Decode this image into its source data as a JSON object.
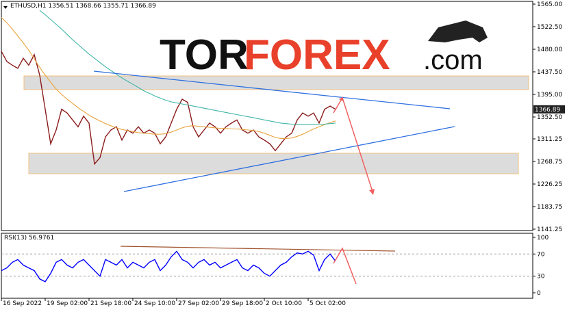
{
  "chart_data": [
    {
      "type": "line",
      "title": "ETHUSD,H1  1356.51 1368.66 1355.71 1366.89",
      "logo": {
        "part1": "TOR",
        "part2": "FOREX",
        "part3": ".com"
      },
      "last_price": {
        "value": 1366.89,
        "label": "1366.89"
      },
      "x": [
        0,
        1,
        2,
        3,
        4,
        5,
        6,
        7,
        8,
        9,
        10,
        11,
        12,
        13,
        14,
        15,
        16,
        17,
        18,
        19,
        20,
        21,
        22,
        23,
        24,
        25,
        26,
        27,
        28,
        29,
        30,
        31,
        32,
        33,
        34,
        35,
        36,
        37,
        38,
        39,
        40,
        41,
        42,
        43,
        44,
        45,
        46,
        47,
        48,
        49,
        50,
        51,
        52,
        53,
        54,
        55,
        56,
        57,
        58,
        59,
        60,
        61
      ],
      "xlim": [
        0,
        97
      ],
      "ylim": [
        1141.25,
        1565
      ],
      "yticks": [
        {
          "value": 1565,
          "label": "1565.00"
        },
        {
          "value": 1522.5,
          "label": "1522.50"
        },
        {
          "value": 1480,
          "label": "1480.00"
        },
        {
          "value": 1437.5,
          "label": "1437.50"
        },
        {
          "value": 1395,
          "label": "1395.00"
        },
        {
          "value": 1352.5,
          "label": "1352.50"
        },
        {
          "value": 1311.25,
          "label": "1311.25"
        },
        {
          "value": 1268.75,
          "label": "1268.75"
        },
        {
          "value": 1226.25,
          "label": "1226.25"
        },
        {
          "value": 1183.75,
          "label": "1183.75"
        },
        {
          "value": 1141.25,
          "label": "1141.25"
        }
      ],
      "series": [
        {
          "color": "#8b1a1a",
          "values": [
            1476,
            1457,
            1450,
            1444,
            1463,
            1450,
            1470,
            1431,
            1367,
            1302,
            1328,
            1367,
            1360,
            1347,
            1334,
            1354,
            1341,
            1264,
            1276,
            1315,
            1328,
            1334,
            1309,
            1328,
            1322,
            1334,
            1322,
            1328,
            1322,
            1302,
            1315,
            1341,
            1367,
            1386,
            1380,
            1334,
            1315,
            1328,
            1341,
            1334,
            1322,
            1334,
            1341,
            1347,
            1328,
            1322,
            1328,
            1315,
            1309,
            1302,
            1289,
            1302,
            1315,
            1322,
            1347,
            1360,
            1354,
            1360,
            1341,
            1367,
            1373,
            1367
          ]
        },
        {
          "color": "#e8a33d",
          "values": [
            1540,
            1530,
            1518,
            1505,
            1492,
            1478,
            1462,
            1446,
            1431,
            1418,
            1405,
            1395,
            1386,
            1378,
            1370,
            1363,
            1356,
            1350,
            1345,
            1340,
            1336,
            1332,
            1329,
            1327,
            1325,
            1323,
            1322,
            1321,
            1320,
            1320,
            1321,
            1324,
            1328,
            1332,
            1335,
            1336,
            1335,
            1334,
            1333,
            1332,
            1331,
            1331,
            1330,
            1330,
            1329,
            1328,
            1327,
            1325,
            1322,
            1318,
            1314,
            1312,
            1312,
            1313,
            1316,
            1320,
            1325,
            1330,
            1334,
            1338,
            1342,
            1345
          ]
        },
        {
          "color": "#3fb5a8",
          "values": [
            null,
            null,
            null,
            null,
            null,
            null,
            null,
            1553,
            1545,
            1536,
            1527,
            1518,
            1508,
            1498,
            1489,
            1480,
            1471,
            1463,
            1455,
            1447,
            1440,
            1433,
            1426,
            1420,
            1414,
            1408,
            1402,
            1397,
            1392,
            1388,
            1384,
            1381,
            1379,
            1377,
            1375,
            1373,
            1371,
            1369,
            1367,
            1365,
            1363,
            1361,
            1359,
            1357,
            1355,
            1353,
            1351,
            1349,
            1347,
            1345,
            1343,
            1341,
            1340,
            1339,
            1338,
            1338,
            1338,
            1338,
            1339,
            1339,
            1340,
            1341
          ]
        }
      ]
    },
    {
      "type": "line",
      "title": "RSI(13) 56.9761",
      "x": [
        0,
        1,
        2,
        3,
        4,
        5,
        6,
        7,
        8,
        9,
        10,
        11,
        12,
        13,
        14,
        15,
        16,
        17,
        18,
        19,
        20,
        21,
        22,
        23,
        24,
        25,
        26,
        27,
        28,
        29,
        30,
        31,
        32,
        33,
        34,
        35,
        36,
        37,
        38,
        39,
        40,
        41,
        42,
        43,
        44,
        45,
        46,
        47,
        48,
        49,
        50,
        51,
        52,
        53,
        54,
        55,
        56,
        57,
        58,
        59,
        60,
        61
      ],
      "xlim": [
        0,
        97
      ],
      "xticks": [
        {
          "value": 0,
          "label": "16 Sep 2022"
        },
        {
          "value": 8,
          "label": "19 Sep 02:00"
        },
        {
          "value": 16,
          "label": "21 Sep 18:00"
        },
        {
          "value": 24,
          "label": "24 Sep 10:00"
        },
        {
          "value": 32,
          "label": "27 Sep 02:00"
        },
        {
          "value": 40,
          "label": "29 Sep 18:00"
        },
        {
          "value": 48,
          "label": "2 Oct 10:00"
        },
        {
          "value": 56,
          "label": "5 Oct 02:00"
        }
      ],
      "ylim": [
        0,
        100
      ],
      "yticks": [
        100,
        70,
        30,
        0
      ],
      "levels": [
        70,
        30
      ],
      "series": [
        {
          "color": "#0000ff",
          "values": [
            40,
            45,
            55,
            60,
            50,
            45,
            40,
            25,
            20,
            35,
            55,
            60,
            50,
            45,
            55,
            60,
            50,
            40,
            30,
            60,
            55,
            50,
            60,
            45,
            55,
            50,
            45,
            55,
            60,
            40,
            50,
            65,
            75,
            60,
            55,
            45,
            55,
            60,
            50,
            55,
            45,
            50,
            55,
            60,
            45,
            40,
            50,
            45,
            35,
            30,
            40,
            50,
            55,
            65,
            72,
            70,
            75,
            68,
            40,
            60,
            70,
            56.9761
          ]
        }
      ]
    }
  ]
}
